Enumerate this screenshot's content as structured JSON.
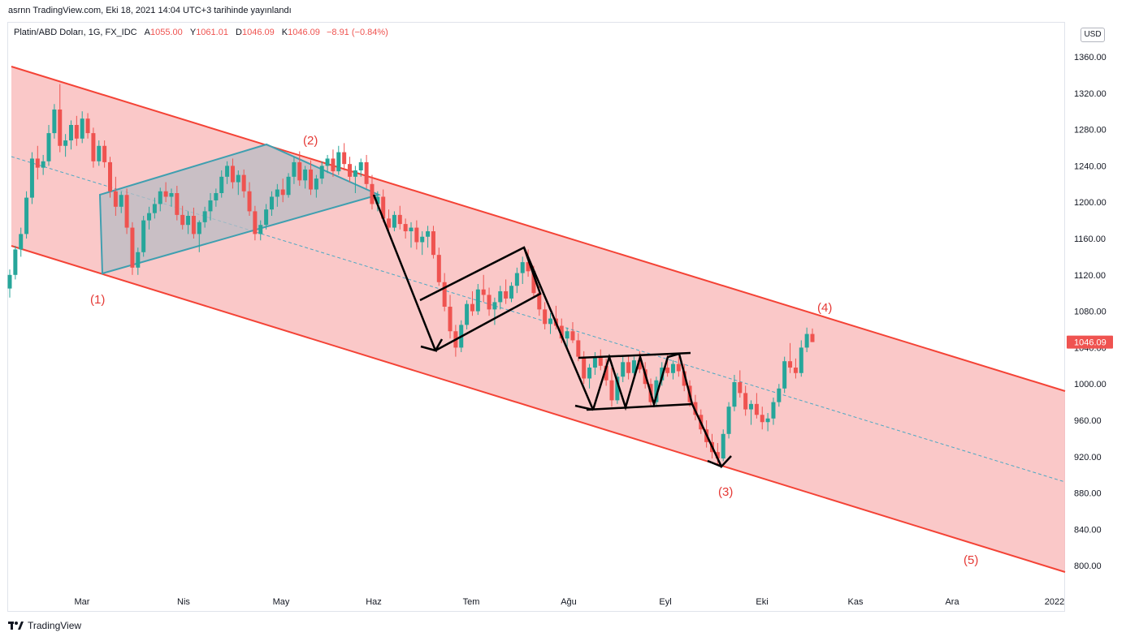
{
  "caption": "asrnn TradingView.com, Eki 18, 2021 14:04 UTC+3 tarihinde yayınlandı",
  "legend": {
    "symbol": "Platin/ABD Doları, 1G, FX_IDC",
    "open_label": "A",
    "open_value": "1055.00",
    "high_label": "Y",
    "high_value": "1061.01",
    "low_label": "D",
    "low_value": "1046.09",
    "close_label": "K",
    "close_value": "1046.09",
    "change": "−8.91 (−0.84%)"
  },
  "currency": "USD",
  "footer": "TradingView",
  "colors": {
    "up": "#26a69a",
    "down": "#ef5350",
    "channel_line": "#f44336",
    "channel_fill": "#f9b8b8",
    "flag_fill": "#b8bcc4",
    "flag_line": "#3f9fb0",
    "median": "#4ba8c3",
    "pattern_line": "#000000",
    "price_tag": "#ef5350"
  },
  "chart_data": {
    "type": "candlestick",
    "y_axis": {
      "ticks": [
        "1360.00",
        "1320.00",
        "1280.00",
        "1240.00",
        "1200.00",
        "1160.00",
        "1120.00",
        "1080.00",
        "1040.00",
        "1000.00",
        "960.00",
        "920.00",
        "880.00",
        "840.00",
        "800.00"
      ],
      "ylim": [
        780,
        1380
      ]
    },
    "x_axis": {
      "ticks": [
        "Mar",
        "Nis",
        "May",
        "Haz",
        "Tem",
        "Ağu",
        "Eyl",
        "Eki",
        "Kas",
        "Ara",
        "2022"
      ]
    },
    "last_price": "1046.09",
    "wave_labels": [
      "(1)",
      "(2)",
      "(3)",
      "(4)",
      "(5)"
    ],
    "ohlc": [
      [
        1105,
        1126,
        1095,
        1120
      ],
      [
        1120,
        1152,
        1115,
        1148
      ],
      [
        1148,
        1172,
        1140,
        1165
      ],
      [
        1165,
        1212,
        1160,
        1205
      ],
      [
        1205,
        1255,
        1198,
        1248
      ],
      [
        1248,
        1262,
        1225,
        1238
      ],
      [
        1238,
        1252,
        1230,
        1245
      ],
      [
        1245,
        1285,
        1240,
        1276
      ],
      [
        1276,
        1308,
        1270,
        1302
      ],
      [
        1302,
        1330,
        1255,
        1262
      ],
      [
        1262,
        1275,
        1250,
        1268
      ],
      [
        1268,
        1290,
        1258,
        1285
      ],
      [
        1285,
        1295,
        1262,
        1270
      ],
      [
        1270,
        1300,
        1265,
        1292
      ],
      [
        1292,
        1298,
        1270,
        1276
      ],
      [
        1276,
        1282,
        1238,
        1245
      ],
      [
        1245,
        1268,
        1240,
        1262
      ],
      [
        1262,
        1268,
        1238,
        1244
      ],
      [
        1244,
        1250,
        1205,
        1212
      ],
      [
        1212,
        1228,
        1185,
        1195
      ],
      [
        1195,
        1212,
        1188,
        1208
      ],
      [
        1208,
        1215,
        1165,
        1172
      ],
      [
        1172,
        1178,
        1120,
        1128
      ],
      [
        1128,
        1150,
        1120,
        1145
      ],
      [
        1145,
        1185,
        1140,
        1180
      ],
      [
        1180,
        1195,
        1170,
        1188
      ],
      [
        1188,
        1205,
        1182,
        1198
      ],
      [
        1198,
        1216,
        1190,
        1212
      ],
      [
        1212,
        1222,
        1200,
        1206
      ],
      [
        1206,
        1215,
        1195,
        1210
      ],
      [
        1210,
        1218,
        1180,
        1186
      ],
      [
        1186,
        1196,
        1170,
        1175
      ],
      [
        1175,
        1190,
        1165,
        1185
      ],
      [
        1185,
        1194,
        1160,
        1165
      ],
      [
        1165,
        1180,
        1145,
        1178
      ],
      [
        1178,
        1195,
        1172,
        1190
      ],
      [
        1190,
        1210,
        1180,
        1202
      ],
      [
        1202,
        1215,
        1195,
        1210
      ],
      [
        1210,
        1235,
        1205,
        1228
      ],
      [
        1228,
        1245,
        1220,
        1240
      ],
      [
        1240,
        1248,
        1215,
        1222
      ],
      [
        1222,
        1235,
        1208,
        1230
      ],
      [
        1230,
        1236,
        1205,
        1212
      ],
      [
        1212,
        1222,
        1185,
        1190
      ],
      [
        1190,
        1196,
        1158,
        1165
      ],
      [
        1165,
        1180,
        1158,
        1175
      ],
      [
        1175,
        1198,
        1170,
        1192
      ],
      [
        1192,
        1212,
        1185,
        1206
      ],
      [
        1206,
        1220,
        1195,
        1214
      ],
      [
        1214,
        1226,
        1200,
        1208
      ],
      [
        1208,
        1232,
        1205,
        1228
      ],
      [
        1228,
        1250,
        1220,
        1244
      ],
      [
        1244,
        1256,
        1218,
        1224
      ],
      [
        1224,
        1240,
        1215,
        1236
      ],
      [
        1236,
        1246,
        1208,
        1214
      ],
      [
        1214,
        1230,
        1205,
        1226
      ],
      [
        1226,
        1245,
        1220,
        1240
      ],
      [
        1240,
        1252,
        1232,
        1248
      ],
      [
        1248,
        1258,
        1228,
        1234
      ],
      [
        1234,
        1262,
        1230,
        1255
      ],
      [
        1255,
        1265,
        1235,
        1242
      ],
      [
        1242,
        1250,
        1222,
        1228
      ],
      [
        1228,
        1240,
        1210,
        1235
      ],
      [
        1235,
        1248,
        1228,
        1244
      ],
      [
        1244,
        1252,
        1215,
        1220
      ],
      [
        1220,
        1230,
        1192,
        1198
      ],
      [
        1198,
        1212,
        1190,
        1206
      ],
      [
        1206,
        1214,
        1178,
        1182
      ],
      [
        1182,
        1192,
        1165,
        1172
      ],
      [
        1172,
        1190,
        1168,
        1186
      ],
      [
        1186,
        1196,
        1170,
        1176
      ],
      [
        1176,
        1182,
        1160,
        1168
      ],
      [
        1168,
        1178,
        1150,
        1172
      ],
      [
        1172,
        1180,
        1148,
        1156
      ],
      [
        1156,
        1168,
        1142,
        1162
      ],
      [
        1162,
        1174,
        1150,
        1168
      ],
      [
        1168,
        1174,
        1138,
        1142
      ],
      [
        1142,
        1150,
        1108,
        1112
      ],
      [
        1112,
        1122,
        1080,
        1085
      ],
      [
        1085,
        1098,
        1050,
        1058
      ],
      [
        1058,
        1065,
        1030,
        1040
      ],
      [
        1040,
        1070,
        1035,
        1065
      ],
      [
        1065,
        1092,
        1060,
        1088
      ],
      [
        1088,
        1102,
        1075,
        1080
      ],
      [
        1080,
        1110,
        1076,
        1104
      ],
      [
        1104,
        1120,
        1090,
        1098
      ],
      [
        1098,
        1106,
        1075,
        1082
      ],
      [
        1082,
        1095,
        1065,
        1090
      ],
      [
        1090,
        1108,
        1082,
        1102
      ],
      [
        1102,
        1115,
        1088,
        1094
      ],
      [
        1094,
        1112,
        1090,
        1108
      ],
      [
        1108,
        1128,
        1100,
        1122
      ],
      [
        1122,
        1140,
        1110,
        1134
      ],
      [
        1134,
        1148,
        1118,
        1124
      ],
      [
        1124,
        1130,
        1095,
        1100
      ],
      [
        1100,
        1108,
        1075,
        1082
      ],
      [
        1082,
        1090,
        1060,
        1066
      ],
      [
        1066,
        1078,
        1055,
        1072
      ],
      [
        1072,
        1086,
        1060,
        1064
      ],
      [
        1064,
        1072,
        1045,
        1050
      ],
      [
        1050,
        1062,
        1040,
        1058
      ],
      [
        1058,
        1068,
        1045,
        1048
      ],
      [
        1048,
        1056,
        1025,
        1030
      ],
      [
        1030,
        1036,
        1000,
        1006
      ],
      [
        1006,
        1022,
        995,
        1018
      ],
      [
        1018,
        1035,
        1010,
        1030
      ],
      [
        1030,
        1038,
        1015,
        1020
      ],
      [
        1020,
        1028,
        998,
        1004
      ],
      [
        1004,
        1018,
        975,
        982
      ],
      [
        982,
        1012,
        978,
        1008
      ],
      [
        1008,
        1030,
        1002,
        1024
      ],
      [
        1024,
        1032,
        1005,
        1012
      ],
      [
        1012,
        1030,
        1008,
        1026
      ],
      [
        1026,
        1036,
        1012,
        1016
      ],
      [
        1016,
        1024,
        995,
        1000
      ],
      [
        1000,
        1006,
        975,
        980
      ],
      [
        980,
        1008,
        976,
        1004
      ],
      [
        1004,
        1024,
        998,
        1018
      ],
      [
        1018,
        1032,
        1008,
        1012
      ],
      [
        1012,
        1026,
        1005,
        1022
      ],
      [
        1022,
        1030,
        1008,
        1014
      ],
      [
        1014,
        1022,
        992,
        998
      ],
      [
        998,
        1004,
        975,
        980
      ],
      [
        980,
        988,
        960,
        966
      ],
      [
        966,
        972,
        945,
        950
      ],
      [
        950,
        960,
        930,
        936
      ],
      [
        936,
        945,
        918,
        925
      ],
      [
        925,
        935,
        912,
        918
      ],
      [
        918,
        950,
        915,
        945
      ],
      [
        945,
        980,
        940,
        975
      ],
      [
        975,
        1010,
        970,
        1002
      ],
      [
        1002,
        1015,
        985,
        990
      ],
      [
        990,
        998,
        965,
        972
      ],
      [
        972,
        982,
        955,
        978
      ],
      [
        978,
        990,
        962,
        966
      ],
      [
        966,
        975,
        950,
        958
      ],
      [
        958,
        968,
        948,
        962
      ],
      [
        962,
        985,
        955,
        980
      ],
      [
        980,
        1000,
        975,
        995
      ],
      [
        995,
        1030,
        990,
        1025
      ],
      [
        1025,
        1045,
        1012,
        1018
      ],
      [
        1018,
        1028,
        1006,
        1012
      ],
      [
        1012,
        1048,
        1008,
        1040
      ],
      [
        1040,
        1062,
        1035,
        1055
      ],
      [
        1055,
        1061,
        1046,
        1046.09
      ]
    ]
  }
}
